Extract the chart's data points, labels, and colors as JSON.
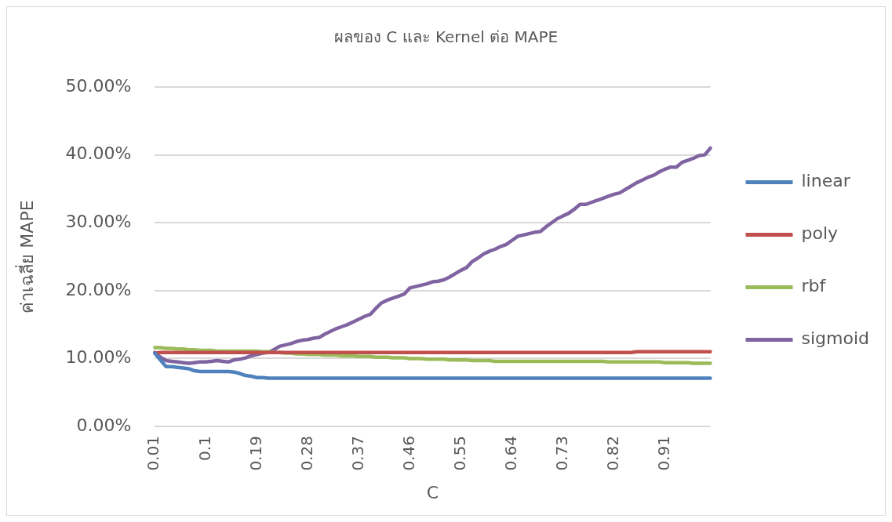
{
  "chart_data": {
    "type": "line",
    "title": "ผลของ C และ Kernel ต่อ MAPE",
    "xlabel": "C",
    "ylabel": "ค่าเฉลี่ย MAPE",
    "categories": [
      "0.01",
      null,
      null,
      null,
      null,
      null,
      null,
      null,
      null,
      "0.1",
      null,
      null,
      null,
      null,
      null,
      null,
      null,
      null,
      "0.19",
      null,
      null,
      null,
      null,
      null,
      null,
      null,
      null,
      "0.28",
      null,
      null,
      null,
      null,
      null,
      null,
      null,
      null,
      "0.37",
      null,
      null,
      null,
      null,
      null,
      null,
      null,
      null,
      "0.46",
      null,
      null,
      null,
      null,
      null,
      null,
      null,
      null,
      "0.55",
      null,
      null,
      null,
      null,
      null,
      null,
      null,
      null,
      "0.64",
      null,
      null,
      null,
      null,
      null,
      null,
      null,
      null,
      "0.73",
      null,
      null,
      null,
      null,
      null,
      null,
      null,
      null,
      "0.82",
      null,
      null,
      null,
      null,
      null,
      null,
      null,
      null,
      "0.91",
      null,
      null,
      null,
      null,
      null,
      null,
      null,
      null
    ],
    "series": [
      {
        "name": "linear",
        "color": "#4f81bd",
        "values": [
          10.8,
          9.8,
          8.8,
          8.8,
          8.7,
          8.6,
          8.5,
          8.2,
          8.1,
          8.1,
          8.1,
          8.1,
          8.1,
          8.1,
          8.0,
          7.8,
          7.5,
          7.4,
          7.2,
          7.2,
          7.1,
          7.1,
          7.1,
          7.1,
          7.1,
          7.1,
          7.1,
          7.1,
          7.1,
          7.1,
          7.1,
          7.1,
          7.1,
          7.1,
          7.1,
          7.1,
          7.1,
          7.1,
          7.1,
          7.1,
          7.1,
          7.1,
          7.1,
          7.1,
          7.1,
          7.1,
          7.1,
          7.1,
          7.1,
          7.1,
          7.1,
          7.1,
          7.1,
          7.1,
          7.1,
          7.1,
          7.1,
          7.1,
          7.1,
          7.1,
          7.1,
          7.1,
          7.1,
          7.1,
          7.1,
          7.1,
          7.1,
          7.1,
          7.1,
          7.1,
          7.1,
          7.1,
          7.1,
          7.1,
          7.1,
          7.1,
          7.1,
          7.1,
          7.1,
          7.1,
          7.1,
          7.1,
          7.1,
          7.1,
          7.1,
          7.1,
          7.1,
          7.1,
          7.1,
          7.1,
          7.1,
          7.1,
          7.1,
          7.1,
          7.1,
          7.1,
          7.1,
          7.1,
          7.1
        ]
      },
      {
        "name": "poly",
        "color": "#c0504d",
        "values": [
          10.8,
          10.9,
          10.9,
          10.9,
          10.9,
          10.9,
          10.9,
          10.9,
          10.9,
          10.9,
          10.9,
          10.9,
          10.9,
          10.9,
          10.9,
          10.9,
          10.9,
          10.9,
          10.9,
          10.9,
          10.9,
          10.9,
          10.9,
          10.9,
          10.9,
          10.9,
          10.9,
          10.9,
          10.9,
          10.9,
          10.9,
          10.9,
          10.9,
          10.9,
          10.9,
          10.9,
          10.9,
          10.9,
          10.9,
          10.9,
          10.9,
          10.9,
          10.9,
          10.9,
          10.9,
          10.9,
          10.9,
          10.9,
          10.9,
          10.9,
          10.9,
          10.9,
          10.9,
          10.9,
          10.9,
          10.9,
          10.9,
          10.9,
          10.9,
          10.9,
          10.9,
          10.9,
          10.9,
          10.9,
          10.9,
          10.9,
          10.9,
          10.9,
          10.9,
          10.9,
          10.9,
          10.9,
          10.9,
          10.9,
          10.9,
          10.9,
          10.9,
          10.9,
          10.9,
          10.9,
          10.9,
          10.9,
          10.9,
          10.9,
          10.9,
          11.0,
          11.0,
          11.0,
          11.0,
          11.0,
          11.0,
          11.0,
          11.0,
          11.0,
          11.0,
          11.0,
          11.0,
          11.0,
          11.0
        ]
      },
      {
        "name": "rbf",
        "color": "#9bbb59",
        "values": [
          11.6,
          11.6,
          11.5,
          11.5,
          11.4,
          11.4,
          11.3,
          11.3,
          11.2,
          11.2,
          11.2,
          11.1,
          11.1,
          11.1,
          11.1,
          11.1,
          11.1,
          11.1,
          11.1,
          11.0,
          11.0,
          10.9,
          10.9,
          10.8,
          10.8,
          10.7,
          10.7,
          10.6,
          10.6,
          10.6,
          10.5,
          10.5,
          10.5,
          10.4,
          10.4,
          10.4,
          10.3,
          10.3,
          10.3,
          10.2,
          10.2,
          10.2,
          10.1,
          10.1,
          10.1,
          10.0,
          10.0,
          10.0,
          9.9,
          9.9,
          9.9,
          9.9,
          9.8,
          9.8,
          9.8,
          9.8,
          9.7,
          9.7,
          9.7,
          9.7,
          9.6,
          9.6,
          9.6,
          9.6,
          9.6,
          9.6,
          9.6,
          9.6,
          9.6,
          9.6,
          9.6,
          9.6,
          9.6,
          9.6,
          9.6,
          9.6,
          9.6,
          9.6,
          9.6,
          9.6,
          9.5,
          9.5,
          9.5,
          9.5,
          9.5,
          9.5,
          9.5,
          9.5,
          9.5,
          9.5,
          9.4,
          9.4,
          9.4,
          9.4,
          9.4,
          9.3,
          9.3,
          9.3,
          9.3
        ]
      },
      {
        "name": "sigmoid",
        "color": "#8064a2",
        "values": [
          10.9,
          10.2,
          9.7,
          9.6,
          9.5,
          9.4,
          9.3,
          9.4,
          9.5,
          9.5,
          9.6,
          9.7,
          9.6,
          9.5,
          9.8,
          9.9,
          10.1,
          10.4,
          10.6,
          10.8,
          10.9,
          11.3,
          11.8,
          12.0,
          12.2,
          12.5,
          12.7,
          12.8,
          13.0,
          13.1,
          13.6,
          14.0,
          14.4,
          14.7,
          15.0,
          15.4,
          15.8,
          16.2,
          16.5,
          17.4,
          18.2,
          18.6,
          18.9,
          19.2,
          19.5,
          20.4,
          20.6,
          20.8,
          21.0,
          21.3,
          21.4,
          21.6,
          22.0,
          22.5,
          23.0,
          23.4,
          24.3,
          24.8,
          25.4,
          25.8,
          26.1,
          26.5,
          26.8,
          27.4,
          28.0,
          28.2,
          28.4,
          28.6,
          28.7,
          29.4,
          30.0,
          30.6,
          31.0,
          31.4,
          32.0,
          32.7,
          32.7,
          33.0,
          33.3,
          33.6,
          33.9,
          34.2,
          34.4,
          34.9,
          35.4,
          35.9,
          36.3,
          36.7,
          37.0,
          37.5,
          37.9,
          38.2,
          38.2,
          38.9,
          39.2,
          39.5,
          39.9,
          40.0,
          41.0
        ]
      }
    ],
    "ylim": [
      0,
      50
    ],
    "yticks": [
      {
        "value": 0,
        "label": "0.00%"
      },
      {
        "value": 10,
        "label": "10.00%"
      },
      {
        "value": 20,
        "label": "20.00%"
      },
      {
        "value": 30,
        "label": "30.00%"
      },
      {
        "value": 40,
        "label": "40.00%"
      },
      {
        "value": 50,
        "label": "50.00%"
      }
    ],
    "grid": "y",
    "legend": "right",
    "marker": "none",
    "line_style": "solid"
  }
}
